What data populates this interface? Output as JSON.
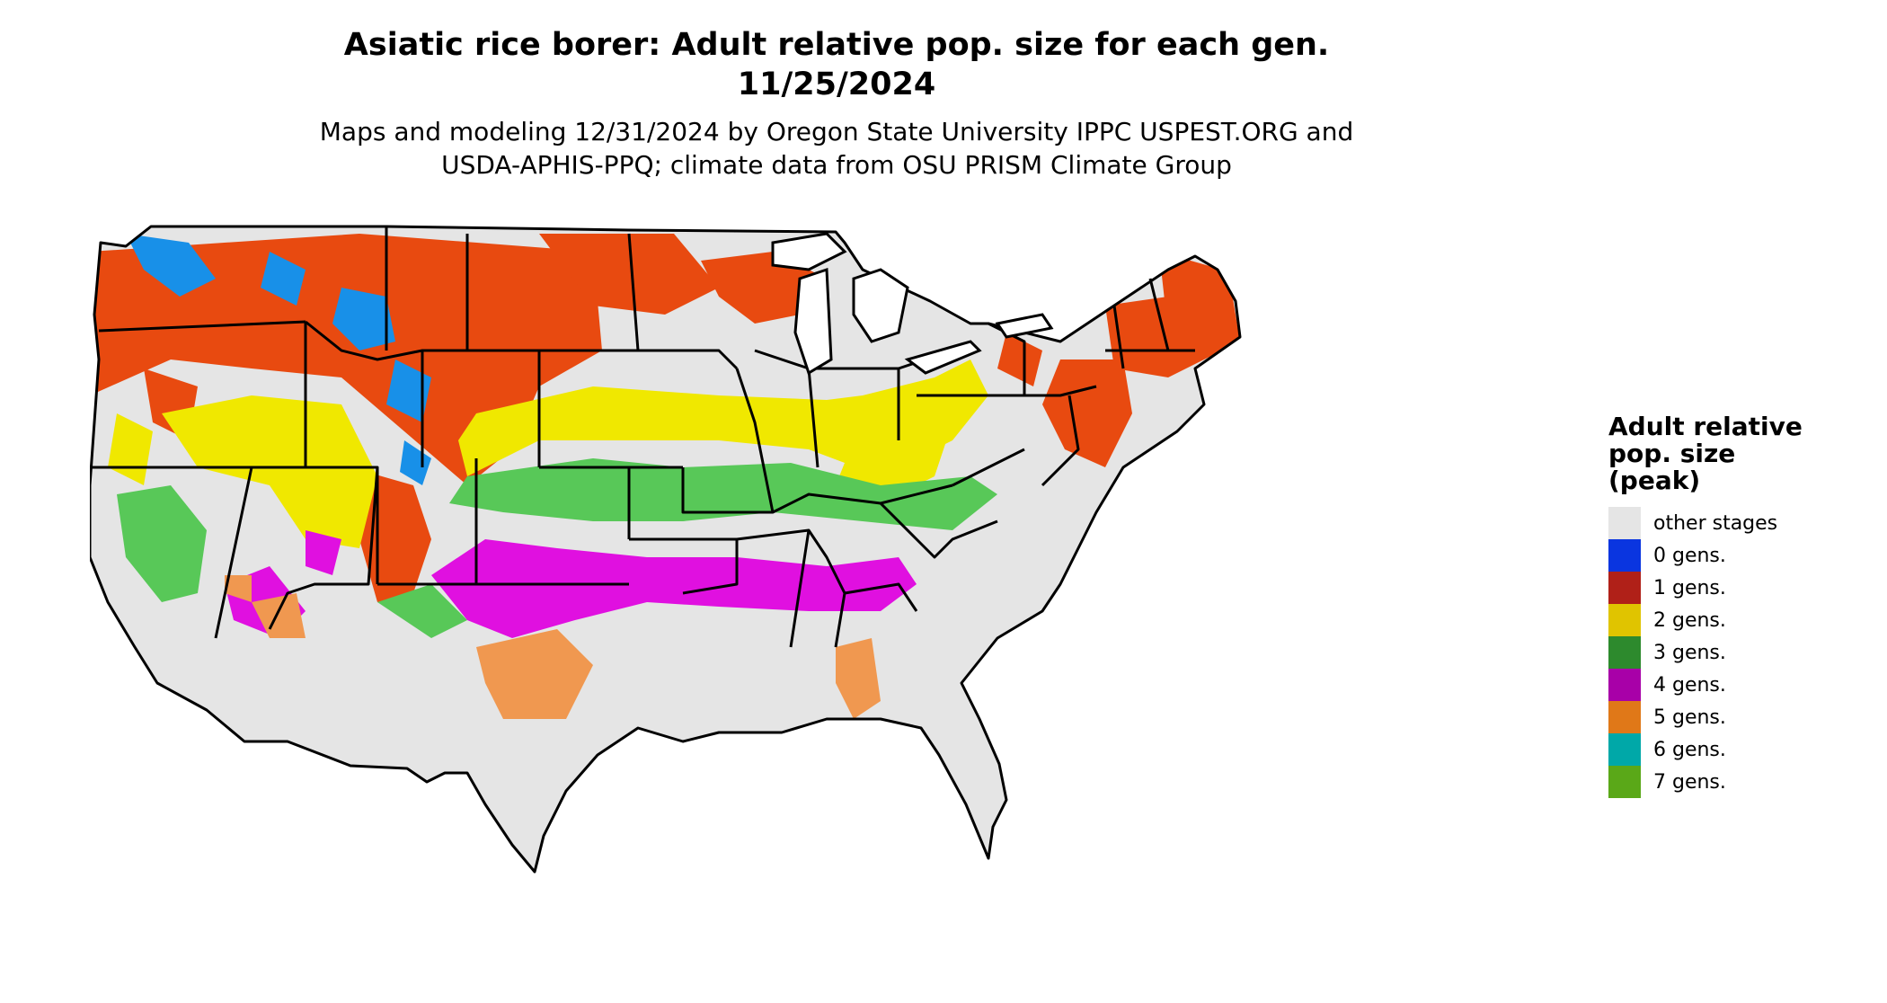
{
  "title_line1": "Asiatic rice borer: Adult relative pop. size for each gen.",
  "title_line2": "11/25/2024",
  "subtitle_line1": "Maps and modeling 12/31/2024 by Oregon State University IPPC USPEST.ORG and",
  "subtitle_line2": "USDA-APHIS-PPQ; climate data from OSU PRISM Climate Group",
  "legend": {
    "title_line1": "Adult relative",
    "title_line2": "pop. size",
    "title_line3": "(peak)",
    "items": [
      {
        "label": "other stages",
        "color": "#e5e5e5"
      },
      {
        "label": "0 gens.",
        "color": "#0a35e0"
      },
      {
        "label": "1 gens.",
        "color": "#b02018"
      },
      {
        "label": "2 gens.",
        "color": "#e0c400"
      },
      {
        "label": "3 gens.",
        "color": "#2d8a2d"
      },
      {
        "label": "4 gens.",
        "color": "#a800a8"
      },
      {
        "label": "5 gens.",
        "color": "#e07818"
      },
      {
        "label": "6 gens.",
        "color": "#00a8a8"
      },
      {
        "label": "7 gens.",
        "color": "#5aa818"
      }
    ]
  },
  "map_colors": {
    "background": "#e5e5e5",
    "one_gen": "#e84a10",
    "zero_gen": "#1890e8",
    "two_gen": "#f0e800",
    "three_gen": "#58c858",
    "four_gen": "#e010e0",
    "five_gen": "#f09850",
    "six_gen": "#00e8e8",
    "border": "#000000"
  }
}
